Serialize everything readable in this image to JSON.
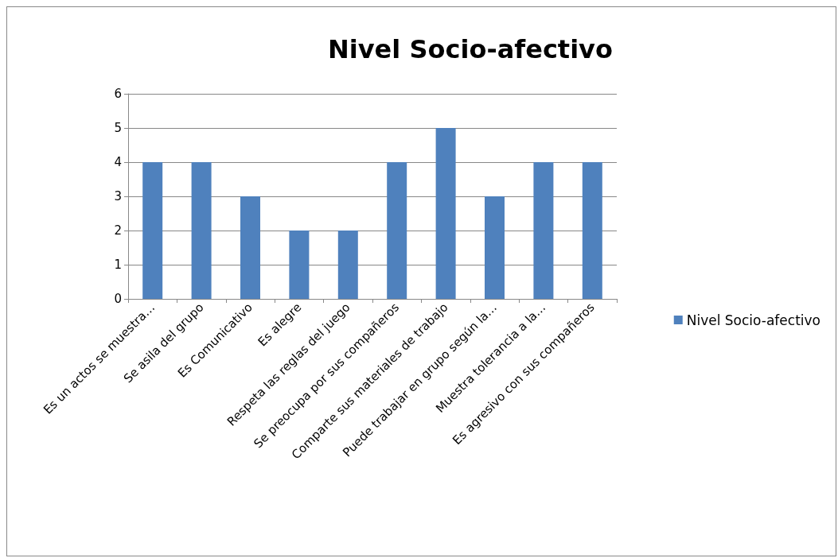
{
  "chart_data": {
    "type": "bar",
    "title": "Nivel Socio-afectivo",
    "categories": [
      "Es un actos se muestra…",
      "Se asila del grupo",
      "Es Comunicativo",
      "Es alegre",
      "Respeta las reglas del juego",
      "Se preocupa por sus compañeros",
      "Comparte sus materiales de trabajo",
      "Puede trabajar en grupo según la…",
      "Muestra tolerancia a la…",
      "Es agresivo con sus compañeros"
    ],
    "series": [
      {
        "name": "Nivel Socio-afectivo",
        "color": "#4f81bd",
        "values": [
          4,
          4,
          3,
          2,
          2,
          4,
          5,
          3,
          4,
          4
        ]
      }
    ],
    "ylim": [
      0,
      6
    ],
    "yticks": [
      0,
      1,
      2,
      3,
      4,
      5,
      6
    ],
    "grid": "y",
    "legend": "right"
  }
}
